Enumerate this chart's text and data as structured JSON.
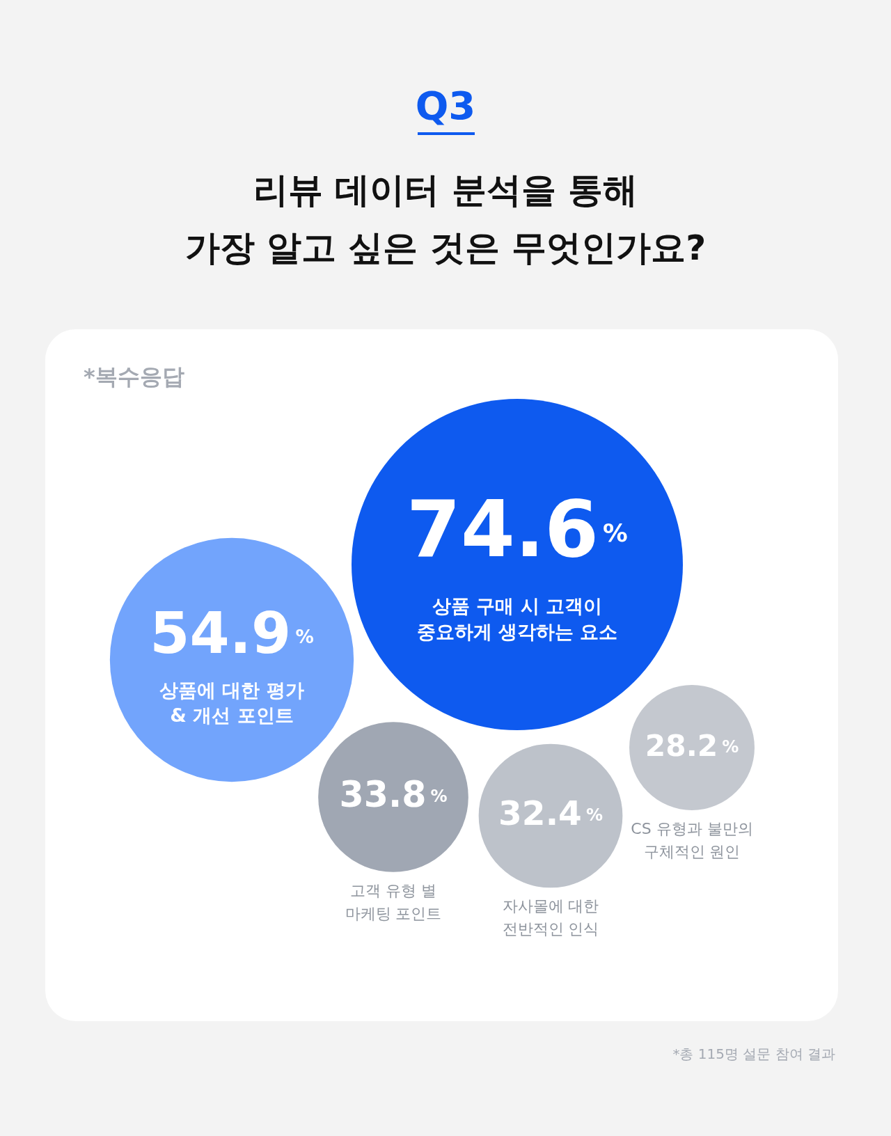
{
  "chart_data": {
    "type": "other",
    "title": "Q3",
    "subtitle": "리뷰 데이터 분석을 통해\n가장 알고 싶은 것은 무엇인가요?",
    "categories": [
      "상품 구매 시 고객이\n중요하게 생각하는 요소",
      "상품에 대한 평가\n& 개선 포인트",
      "고객 유형 별\n마케팅 포인트",
      "자사몰에 대한\n전반적인 인식",
      "CS 유형과 불만의\n구체적인 원인"
    ],
    "values": [
      74.6,
      54.9,
      33.8,
      32.4,
      28.2
    ],
    "colors": [
      "#0e5aef",
      "#72a4fc",
      "#a0a7b3",
      "#bdc2ca",
      "#c4c8cf"
    ],
    "value_labels": [
      "74.6%",
      "54.9%",
      "33.8%",
      "32.4%",
      "28.2%"
    ],
    "annotations": [
      "*복수응답",
      "*총 115명 설문 참여 결과"
    ]
  }
}
